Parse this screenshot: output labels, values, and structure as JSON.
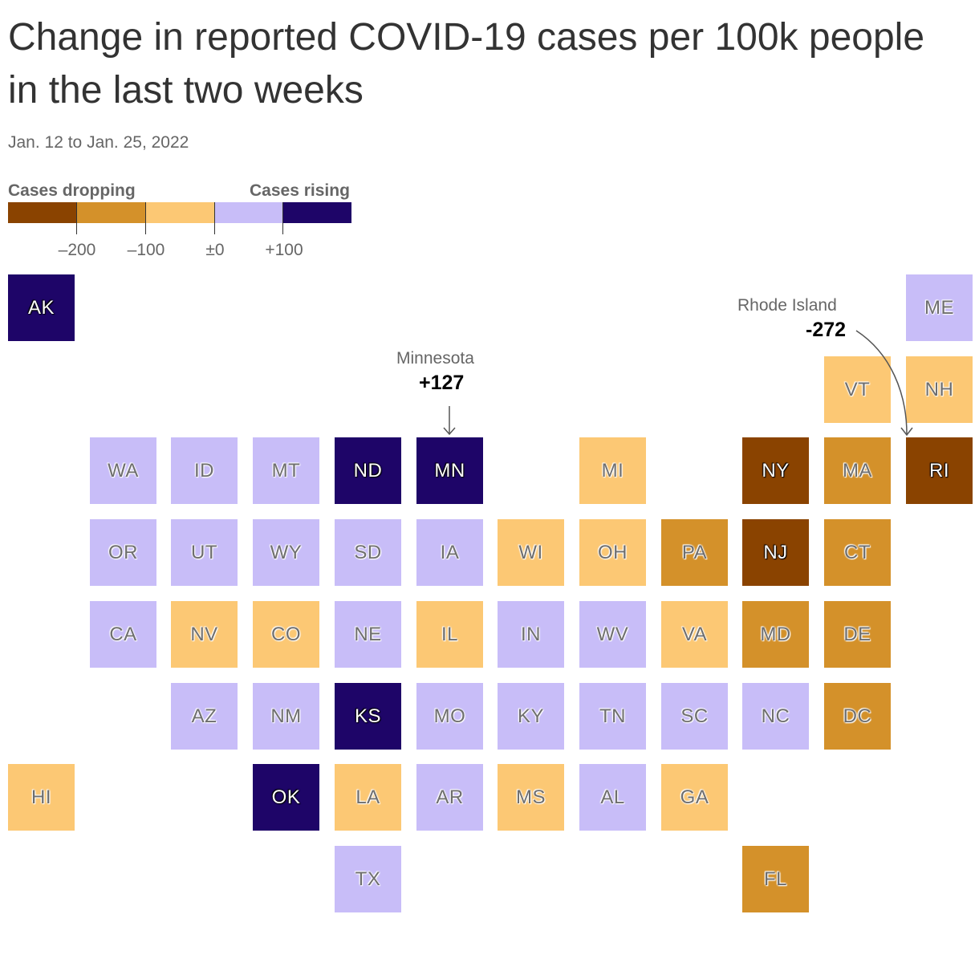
{
  "title": "Change in reported COVID-19 cases per 100k people in the last two weeks",
  "subtitle": "Jan. 12 to Jan. 25, 2022",
  "legend": {
    "low_label": "Cases dropping",
    "high_label": "Cases rising",
    "colors": [
      "#8a4300",
      "#d4912a",
      "#fcc874",
      "#c8bdf8",
      "#1e0568"
    ],
    "ticks": [
      "–200",
      "–100",
      "±0",
      "+100"
    ],
    "breaks": [
      -200,
      -100,
      0,
      100
    ]
  },
  "bins": {
    "dark_brown": "#8a4300",
    "brown": "#d4912a",
    "tan": "#fcc874",
    "lavender": "#c8bdf8",
    "dark_purple": "#1e0568"
  },
  "annotations": [
    {
      "state": "MN",
      "name": "Minnesota",
      "value": "+127"
    },
    {
      "state": "RI",
      "name": "Rhode Island",
      "value": "-272"
    }
  ],
  "states": [
    {
      "abbr": "AK",
      "bin": "dark_purple"
    },
    {
      "abbr": "ME",
      "bin": "lavender"
    },
    {
      "abbr": "VT",
      "bin": "tan"
    },
    {
      "abbr": "NH",
      "bin": "tan"
    },
    {
      "abbr": "WA",
      "bin": "lavender"
    },
    {
      "abbr": "ID",
      "bin": "lavender"
    },
    {
      "abbr": "MT",
      "bin": "lavender"
    },
    {
      "abbr": "ND",
      "bin": "dark_purple"
    },
    {
      "abbr": "MN",
      "bin": "dark_purple"
    },
    {
      "abbr": "MI",
      "bin": "tan"
    },
    {
      "abbr": "NY",
      "bin": "dark_brown"
    },
    {
      "abbr": "MA",
      "bin": "brown"
    },
    {
      "abbr": "RI",
      "bin": "dark_brown"
    },
    {
      "abbr": "OR",
      "bin": "lavender"
    },
    {
      "abbr": "UT",
      "bin": "lavender"
    },
    {
      "abbr": "WY",
      "bin": "lavender"
    },
    {
      "abbr": "SD",
      "bin": "lavender"
    },
    {
      "abbr": "IA",
      "bin": "lavender"
    },
    {
      "abbr": "WI",
      "bin": "tan"
    },
    {
      "abbr": "OH",
      "bin": "tan"
    },
    {
      "abbr": "PA",
      "bin": "brown"
    },
    {
      "abbr": "NJ",
      "bin": "dark_brown"
    },
    {
      "abbr": "CT",
      "bin": "brown"
    },
    {
      "abbr": "CA",
      "bin": "lavender"
    },
    {
      "abbr": "NV",
      "bin": "tan"
    },
    {
      "abbr": "CO",
      "bin": "tan"
    },
    {
      "abbr": "NE",
      "bin": "lavender"
    },
    {
      "abbr": "IL",
      "bin": "tan"
    },
    {
      "abbr": "IN",
      "bin": "lavender"
    },
    {
      "abbr": "WV",
      "bin": "lavender"
    },
    {
      "abbr": "VA",
      "bin": "tan"
    },
    {
      "abbr": "MD",
      "bin": "brown"
    },
    {
      "abbr": "DE",
      "bin": "brown"
    },
    {
      "abbr": "AZ",
      "bin": "lavender"
    },
    {
      "abbr": "NM",
      "bin": "lavender"
    },
    {
      "abbr": "KS",
      "bin": "dark_purple"
    },
    {
      "abbr": "MO",
      "bin": "lavender"
    },
    {
      "abbr": "KY",
      "bin": "lavender"
    },
    {
      "abbr": "TN",
      "bin": "lavender"
    },
    {
      "abbr": "SC",
      "bin": "lavender"
    },
    {
      "abbr": "NC",
      "bin": "lavender"
    },
    {
      "abbr": "DC",
      "bin": "brown"
    },
    {
      "abbr": "HI",
      "bin": "tan"
    },
    {
      "abbr": "OK",
      "bin": "dark_purple"
    },
    {
      "abbr": "LA",
      "bin": "tan"
    },
    {
      "abbr": "AR",
      "bin": "lavender"
    },
    {
      "abbr": "MS",
      "bin": "tan"
    },
    {
      "abbr": "AL",
      "bin": "lavender"
    },
    {
      "abbr": "GA",
      "bin": "tan"
    },
    {
      "abbr": "TX",
      "bin": "lavender"
    },
    {
      "abbr": "FL",
      "bin": "brown"
    }
  ]
}
